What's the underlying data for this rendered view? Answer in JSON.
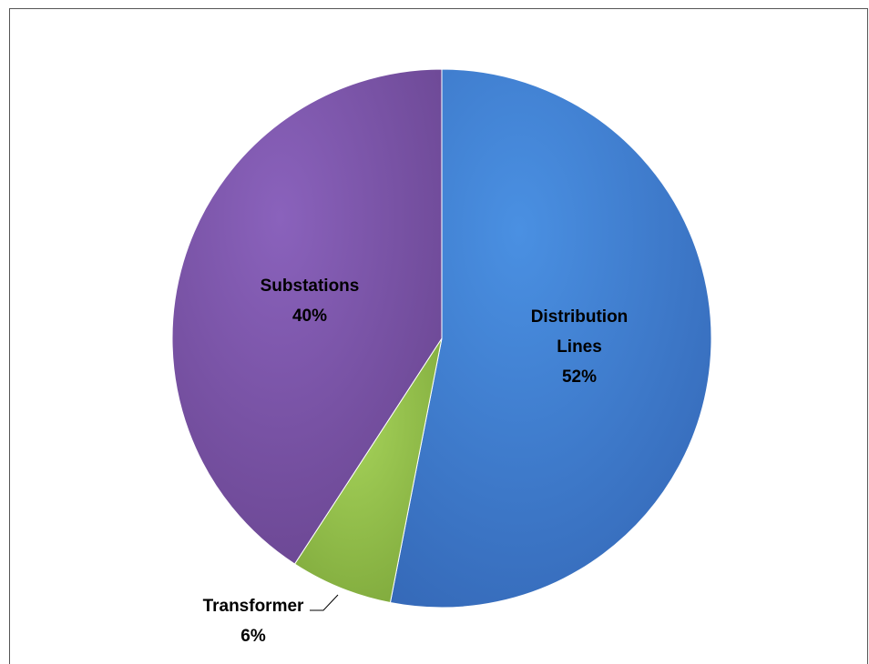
{
  "chart_data": {
    "type": "pie",
    "title": "",
    "slices": [
      {
        "label_lines": [
          "Distribution",
          "Lines"
        ],
        "percent_label": "52%",
        "value": 52,
        "color": "#3E7FD4"
      },
      {
        "label_lines": [
          "Transformer"
        ],
        "percent_label": "6%",
        "value": 6,
        "color": "#92C34A"
      },
      {
        "label_lines": [
          "Substations"
        ],
        "percent_label": "40%",
        "value": 40,
        "color": "#7A52A8"
      }
    ],
    "legend": "none",
    "start_angle_deg": 0,
    "direction": "clockwise"
  }
}
